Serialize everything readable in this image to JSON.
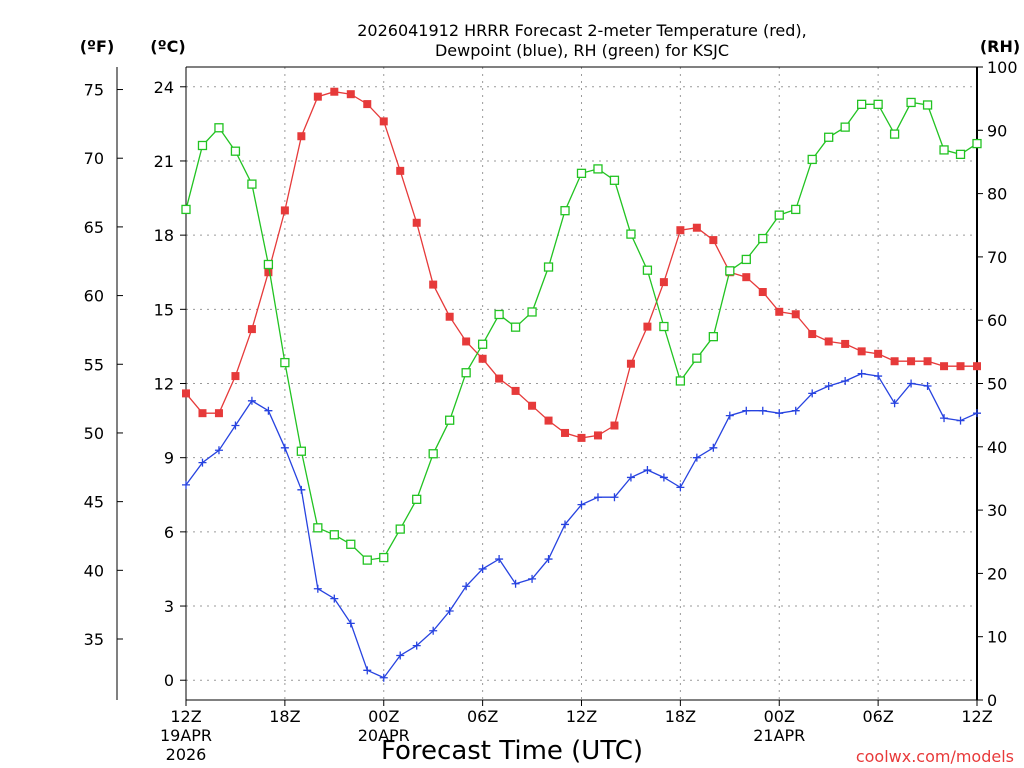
{
  "chart_data": {
    "type": "line",
    "title_line1": "2026041912 HRRR Forecast 2-meter Temperature (red),",
    "title_line2": "Dewpoint (blue), RH (green) for KSJC",
    "xlabel": "Forecast Time (UTC)",
    "credit": "coolwx.com/models",
    "units": {
      "fahrenheit": "(ºF)",
      "celsius": "(ºC)",
      "rh": "(RH)"
    },
    "x_ticks": [
      {
        "hour": 0,
        "line1": "12Z",
        "line2": "19APR",
        "line3": "2026"
      },
      {
        "hour": 6,
        "line1": "18Z",
        "line2": "",
        "line3": ""
      },
      {
        "hour": 12,
        "line1": "00Z",
        "line2": "20APR",
        "line3": ""
      },
      {
        "hour": 18,
        "line1": "06Z",
        "line2": "",
        "line3": ""
      },
      {
        "hour": 24,
        "line1": "12Z",
        "line2": "",
        "line3": ""
      },
      {
        "hour": 30,
        "line1": "18Z",
        "line2": "",
        "line3": ""
      },
      {
        "hour": 36,
        "line1": "00Z",
        "line2": "21APR",
        "line3": ""
      },
      {
        "hour": 42,
        "line1": "06Z",
        "line2": "",
        "line3": ""
      },
      {
        "hour": 48,
        "line1": "12Z",
        "line2": "",
        "line3": ""
      }
    ],
    "xlim": [
      0,
      48
    ],
    "ylim_celsius": [
      -0.8,
      24.8
    ],
    "ylim_rh": [
      0,
      100
    ],
    "celsius_ticks": [
      "0",
      "3",
      "6",
      "9",
      "12",
      "15",
      "18",
      "21",
      "24"
    ],
    "fahrenheit_ticks": [
      "35",
      "40",
      "45",
      "50",
      "55",
      "60",
      "65",
      "70",
      "75"
    ],
    "rh_ticks": [
      "0",
      "10",
      "20",
      "30",
      "40",
      "50",
      "60",
      "70",
      "80",
      "90",
      "100"
    ],
    "grid": true,
    "colors": {
      "temperature": "#e63a3a",
      "dewpoint": "#2743e0",
      "rh": "#22c322",
      "credit": "#e83a3a"
    },
    "series": [
      {
        "axis": "celsius",
        "marker": "filled-square",
        "values": [
          11.6,
          10.8,
          10.8,
          12.3,
          14.2,
          16.5,
          19.0,
          22.0,
          23.6,
          23.8,
          23.7,
          23.3,
          22.6,
          20.6,
          18.5,
          16.0,
          14.7,
          13.7,
          13.0,
          12.2,
          11.7,
          11.1,
          10.5,
          10.0,
          9.8,
          9.9,
          10.3,
          12.8,
          14.3,
          16.1,
          18.2,
          18.3,
          17.8,
          16.5,
          16.3,
          15.7,
          14.9,
          14.8,
          14.0,
          13.7,
          13.6,
          13.3,
          13.2,
          12.9,
          12.9,
          12.9,
          12.7,
          12.7,
          12.7
        ]
      },
      {
        "axis": "celsius",
        "marker": "plus",
        "values": [
          7.9,
          8.8,
          9.3,
          10.3,
          11.3,
          10.9,
          9.4,
          7.7,
          3.7,
          3.3,
          2.3,
          0.4,
          0.1,
          1.0,
          1.4,
          2.0,
          2.8,
          3.8,
          4.5,
          4.9,
          3.9,
          4.1,
          4.9,
          6.3,
          7.1,
          7.4,
          7.4,
          8.2,
          8.5,
          8.2,
          7.8,
          9.0,
          9.4,
          10.7,
          10.9,
          10.9,
          10.8,
          10.9,
          11.6,
          11.9,
          12.1,
          12.4,
          12.3,
          11.2,
          12.0,
          11.9,
          10.6,
          10.5,
          10.8
        ]
      },
      {
        "axis": "rh",
        "marker": "open-square",
        "values": [
          77.5,
          87.6,
          90.4,
          86.7,
          81.5,
          68.8,
          53.3,
          39.3,
          27.2,
          26.1,
          24.6,
          22.1,
          22.5,
          27.0,
          31.7,
          38.9,
          44.2,
          51.7,
          56.2,
          60.9,
          58.9,
          61.3,
          68.4,
          77.3,
          83.2,
          83.9,
          82.1,
          73.6,
          67.9,
          59.0,
          50.4,
          54.0,
          57.4,
          67.8,
          69.6,
          72.9,
          76.6,
          77.5,
          85.4,
          88.9,
          90.5,
          94.1,
          94.1,
          89.4,
          94.4,
          94.0,
          86.9,
          86.2,
          87.9
        ]
      }
    ]
  }
}
